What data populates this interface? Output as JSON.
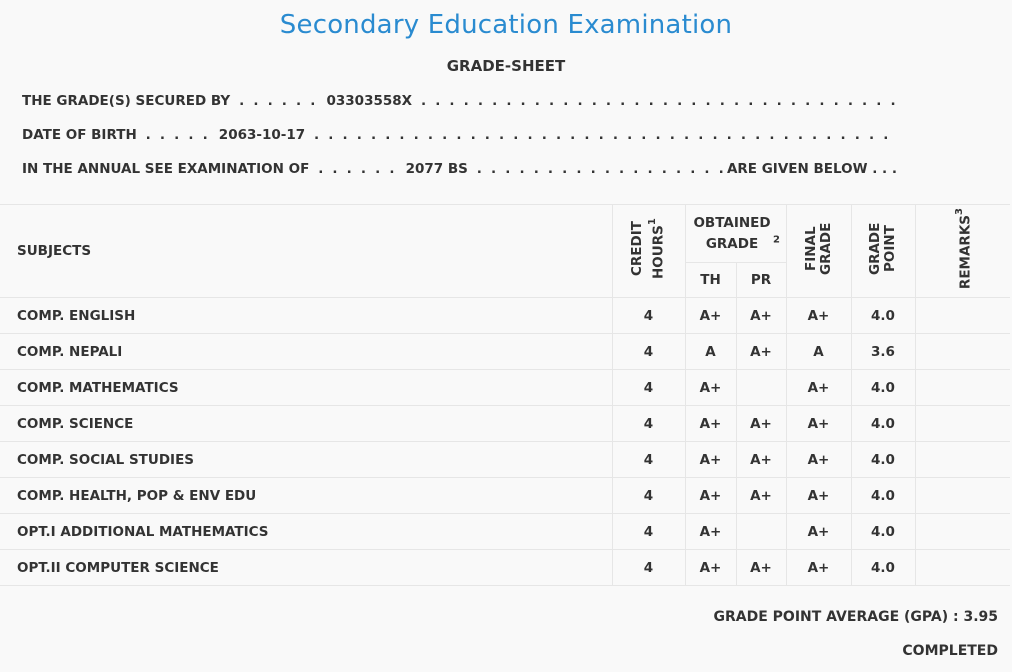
{
  "header": {
    "title": "Secondary Education Examination",
    "subtitle": "GRADE-SHEET"
  },
  "info": {
    "secured_by_label": "THE GRADE(S) SECURED BY",
    "symbol_no": "03303558X",
    "dob_label": "DATE OF BIRTH",
    "dob": "2063-10-17",
    "exam_label": "IN THE ANNUAL SEE EXAMINATION OF",
    "exam_year": "2077 BS",
    "given_below": "ARE GIVEN BELOW"
  },
  "table": {
    "headers": {
      "subjects": "SUBJECTS",
      "credit_hours": "CREDIT HOURS",
      "credit_hours_sup": "1",
      "obtained_grade": "OBTAINED GRADE",
      "obtained_grade_sup": "2",
      "th": "TH",
      "pr": "PR",
      "final_grade": "FINAL GRADE",
      "grade_point": "GRADE POINT",
      "remarks": "REMARKS",
      "remarks_sup": "3"
    },
    "rows": [
      {
        "subject": "COMP. ENGLISH",
        "credit": "4",
        "th": "A+",
        "pr": "A+",
        "final": "A+",
        "gp": "4.0",
        "remarks": ""
      },
      {
        "subject": "COMP. NEPALI",
        "credit": "4",
        "th": "A",
        "pr": "A+",
        "final": "A",
        "gp": "3.6",
        "remarks": ""
      },
      {
        "subject": "COMP. MATHEMATICS",
        "credit": "4",
        "th": "A+",
        "pr": "",
        "final": "A+",
        "gp": "4.0",
        "remarks": ""
      },
      {
        "subject": "COMP. SCIENCE",
        "credit": "4",
        "th": "A+",
        "pr": "A+",
        "final": "A+",
        "gp": "4.0",
        "remarks": ""
      },
      {
        "subject": "COMP. SOCIAL STUDIES",
        "credit": "4",
        "th": "A+",
        "pr": "A+",
        "final": "A+",
        "gp": "4.0",
        "remarks": ""
      },
      {
        "subject": "COMP. HEALTH, POP & ENV EDU",
        "credit": "4",
        "th": "A+",
        "pr": "A+",
        "final": "A+",
        "gp": "4.0",
        "remarks": ""
      },
      {
        "subject": "OPT.I ADDITIONAL MATHEMATICS",
        "credit": "4",
        "th": "A+",
        "pr": "",
        "final": "A+",
        "gp": "4.0",
        "remarks": ""
      },
      {
        "subject": "OPT.II COMPUTER SCIENCE",
        "credit": "4",
        "th": "A+",
        "pr": "A+",
        "final": "A+",
        "gp": "4.0",
        "remarks": ""
      }
    ]
  },
  "summary": {
    "gpa_label": "GRADE POINT AVERAGE (GPA) : ",
    "gpa": "3.95",
    "status": "COMPLETED"
  },
  "colors": {
    "title": "#2a8bd0",
    "text": "#333333",
    "background": "#f9f9f9",
    "border": "#e6e6e6"
  }
}
